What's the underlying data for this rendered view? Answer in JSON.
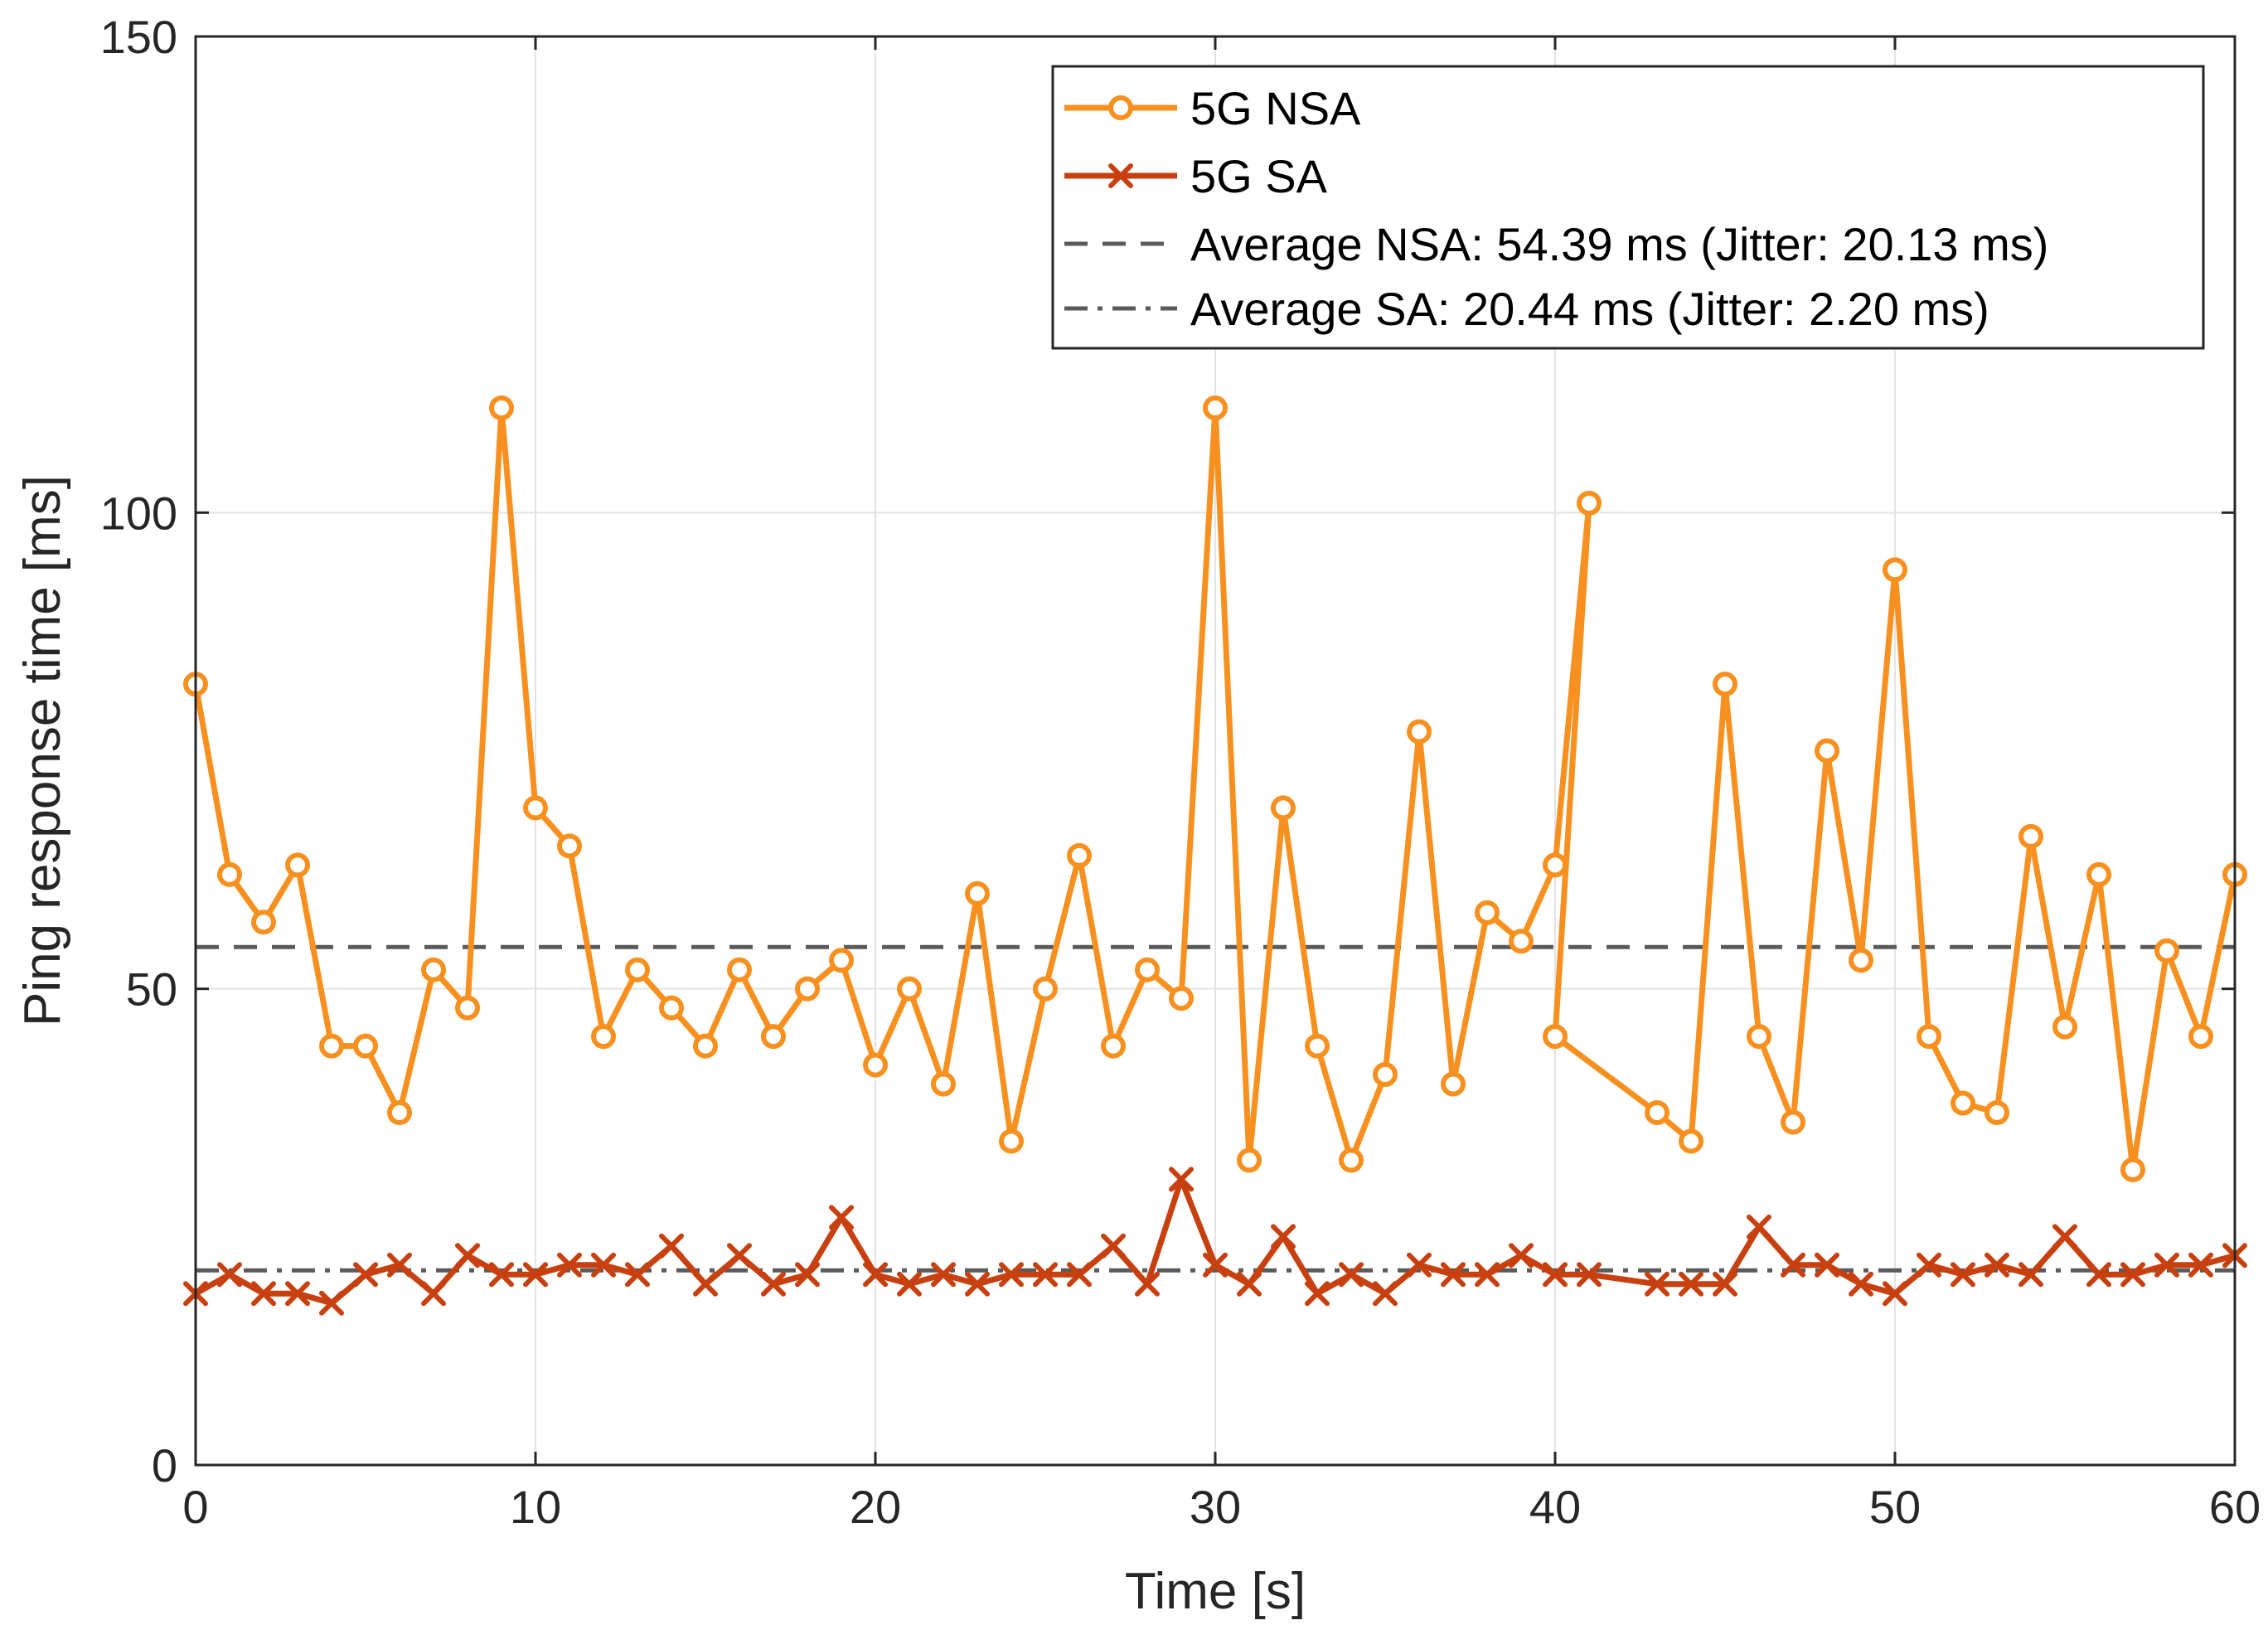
{
  "chart_data": {
    "type": "line",
    "title": "",
    "xlabel": "Time [s]",
    "ylabel": "Ping response time [ms]",
    "xlim": [
      0,
      60
    ],
    "ylim": [
      0,
      150
    ],
    "xticks": [
      0,
      10,
      20,
      30,
      40,
      50,
      60
    ],
    "yticks": [
      0,
      50,
      100,
      150
    ],
    "grid": true,
    "legend_position": "top-right",
    "colors": {
      "nsa": "#F7901E",
      "sa": "#C8400F",
      "avg": "#5A5A5A",
      "grid": "#E3E3E3",
      "axis": "#262626"
    },
    "series": [
      {
        "name": "5G NSA",
        "marker": "circle",
        "x": [
          0,
          1,
          2,
          3,
          4,
          5,
          6,
          7,
          8,
          9,
          10,
          11,
          12,
          13,
          14,
          15,
          16,
          17,
          18,
          19,
          20,
          21,
          22,
          23,
          24,
          25,
          26,
          27,
          28,
          29,
          30,
          31,
          32,
          33,
          34,
          35,
          36,
          37,
          38,
          39,
          40,
          41,
          40,
          43,
          44,
          45,
          46,
          47,
          48,
          49,
          50,
          51,
          52,
          53,
          54,
          55,
          56,
          57,
          58,
          59,
          60
        ],
        "values": [
          82,
          62,
          57,
          63,
          44,
          44,
          37,
          52,
          48,
          111,
          69,
          65,
          45,
          52,
          48,
          44,
          52,
          45,
          50,
          53,
          42,
          50,
          40,
          60,
          34,
          50,
          64,
          44,
          52,
          49,
          111,
          32,
          69,
          44,
          32,
          41,
          77,
          40,
          58,
          55,
          63,
          101,
          45,
          37,
          34,
          82,
          45,
          36,
          75,
          53,
          94,
          45,
          38,
          37,
          66,
          46,
          62,
          31,
          54,
          45,
          62
        ]
      },
      {
        "name": "5G SA",
        "marker": "x",
        "x": [
          0,
          1,
          2,
          3,
          4,
          5,
          6,
          7,
          8,
          9,
          10,
          11,
          12,
          13,
          14,
          15,
          16,
          17,
          18,
          19,
          20,
          21,
          22,
          23,
          24,
          25,
          26,
          27,
          28,
          29,
          30,
          31,
          32,
          33,
          34,
          35,
          36,
          37,
          38,
          39,
          40,
          41,
          43,
          44,
          45,
          46,
          47,
          48,
          49,
          50,
          51,
          52,
          53,
          54,
          55,
          56,
          57,
          58,
          59,
          60
        ],
        "values": [
          18,
          20,
          18,
          18,
          17,
          20,
          21,
          18,
          22,
          20,
          20,
          21,
          21,
          20,
          23,
          19,
          22,
          19,
          20,
          26,
          20,
          19,
          20,
          19,
          20,
          20,
          20,
          23,
          19,
          30,
          21,
          19,
          24,
          18,
          20,
          18,
          21,
          20,
          20,
          22,
          20,
          20,
          19,
          19,
          19,
          25,
          21,
          21,
          19,
          18,
          21,
          20,
          21,
          20,
          24,
          20,
          20,
          21,
          21,
          22
        ]
      },
      {
        "name": "Average NSA: 54.39 ms (Jitter: 20.13 ms)",
        "style": "dashed",
        "values": [
          54.39
        ]
      },
      {
        "name": "Average SA: 20.44 ms (Jitter: 2.20 ms)",
        "style": "dash-dot",
        "values": [
          20.44
        ]
      }
    ]
  }
}
